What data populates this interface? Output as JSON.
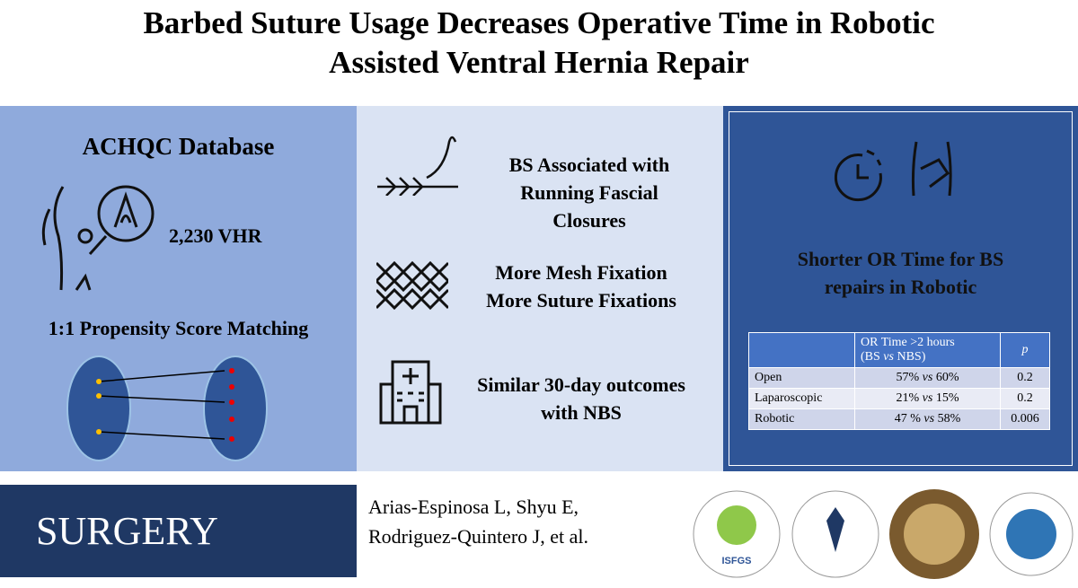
{
  "header": {
    "title_lines": [
      "Barbed Suture Usage Decreases Operative Time in Robotic",
      "Assisted Ventral Hernia Repair"
    ]
  },
  "left_panel": {
    "heading": "ACHQC Database",
    "count": "2,230 VHR",
    "method": "1:1 Propensity Score Matching"
  },
  "middle_panel": {
    "findings": [
      {
        "lines": [
          "BS Associated with",
          "Running Fascial",
          "Closures"
        ]
      },
      {
        "lines": [
          "More Mesh Fixation",
          "More Suture Fixations"
        ]
      },
      {
        "lines": [
          "Similar 30-day outcomes",
          "with NBS"
        ]
      }
    ]
  },
  "right_panel": {
    "heading_lines": [
      "Shorter OR Time for BS",
      "repairs in Robotic"
    ],
    "table": {
      "header": [
        [
          "OR Time >2 hours"
        ],
        [
          "(BS",
          "vs",
          "NBS)"
        ],
        [
          "p"
        ]
      ],
      "rows": [
        [
          "Open",
          [
            "57%",
            "vs",
            "60%"
          ],
          "0.2"
        ],
        [
          "Laparoscopic",
          [
            "21%",
            "vs",
            "15%"
          ],
          "0.2"
        ],
        [
          "Robotic",
          [
            "47 %",
            "vs",
            "58%"
          ],
          "0.006"
        ]
      ]
    }
  },
  "footer": {
    "journal": "SURGERY",
    "authors_lines": [
      "Arias-Espinosa L, Shyu E,",
      "Rodriguez-Quintero J, et al."
    ],
    "logo_label": "ISFGS"
  }
}
